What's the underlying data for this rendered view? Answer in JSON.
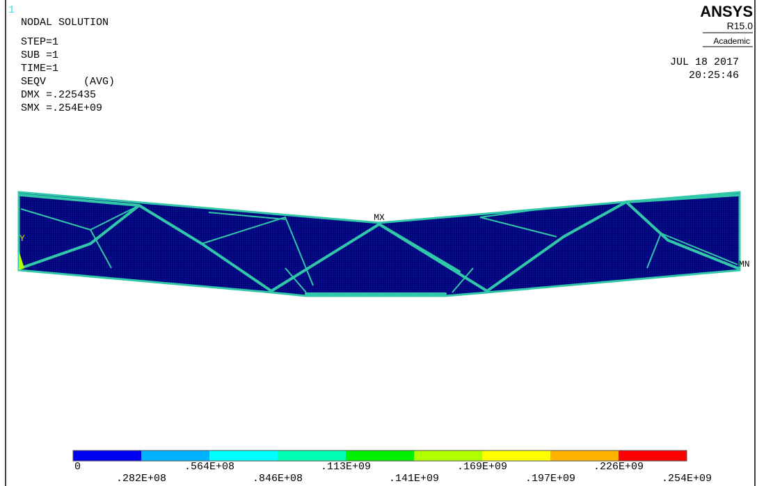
{
  "window_number": "1",
  "info": {
    "lines": [
      "NODAL SOLUTION",
      "STEP=1",
      "SUB =1",
      "TIME=1",
      "SEQV      (AVG)",
      "DMX =.225435",
      "SMX =.254E+09"
    ]
  },
  "logo": {
    "name": "ANSYS",
    "release": "R15.0",
    "edition": "Academic"
  },
  "date": "JUL 18 2017",
  "time": "20:25:46",
  "markers": {
    "max": "MX",
    "min": "MN",
    "axis": "Y"
  },
  "legend": {
    "colors": [
      "#0000f0",
      "#00b2ff",
      "#00ffff",
      "#00ffb2",
      "#00f000",
      "#b2ff00",
      "#ffff00",
      "#ffb200",
      "#ff0000"
    ],
    "labels": [
      "0",
      ".282E+08",
      ".564E+08",
      ".846E+08",
      ".113E+09",
      ".141E+09",
      ".169E+09",
      ".197E+09",
      ".226E+09",
      ".254E+09"
    ]
  }
}
